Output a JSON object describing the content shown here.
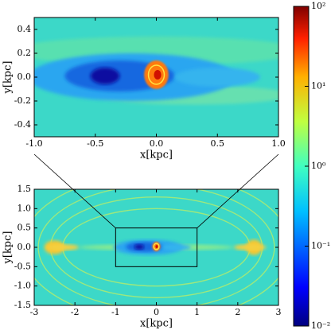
{
  "chart_data": [
    {
      "type": "heatmap",
      "xlabel": "x[kpc]",
      "ylabel": "y[kpc]",
      "xlim": [
        -1,
        1
      ],
      "ylim": [
        -0.5,
        0.5
      ],
      "xticks": [
        {
          "value": -1,
          "label": "-1.0"
        },
        -0.5,
        {
          "value": 0,
          "label": "0.0"
        },
        0.5,
        {
          "value": 1,
          "label": "1.0"
        }
      ],
      "yticks": [
        -0.4,
        -0.2,
        {
          "value": 0,
          "label": "0.0"
        },
        0.2,
        0.4
      ]
    },
    {
      "type": "heatmap",
      "xlabel": "x[kpc]",
      "ylabel": "y[kpc]",
      "xlim": [
        -3,
        3
      ],
      "ylim": [
        -1.5,
        1.5
      ],
      "xticks": [
        -3,
        -2,
        -1,
        0,
        1,
        2,
        3
      ],
      "yticks": [
        -1.5,
        {
          "value": -1,
          "label": "-1.0"
        },
        -0.5,
        {
          "value": 0,
          "label": "0.0"
        },
        0.5,
        {
          "value": 1,
          "label": "1.0"
        },
        1.5
      ]
    },
    {
      "type": "colorbar",
      "log_scale": true,
      "colormap": "jet",
      "ylim": [
        0.01,
        100
      ],
      "yticks": [
        {
          "value": 0.01,
          "label": "10⁻²"
        },
        {
          "value": 0.1,
          "label": "10⁻¹"
        },
        {
          "value": 1,
          "label": "10⁰"
        },
        {
          "value": 10,
          "label": "10¹"
        },
        {
          "value": 100,
          "label": "10²"
        }
      ]
    }
  ]
}
